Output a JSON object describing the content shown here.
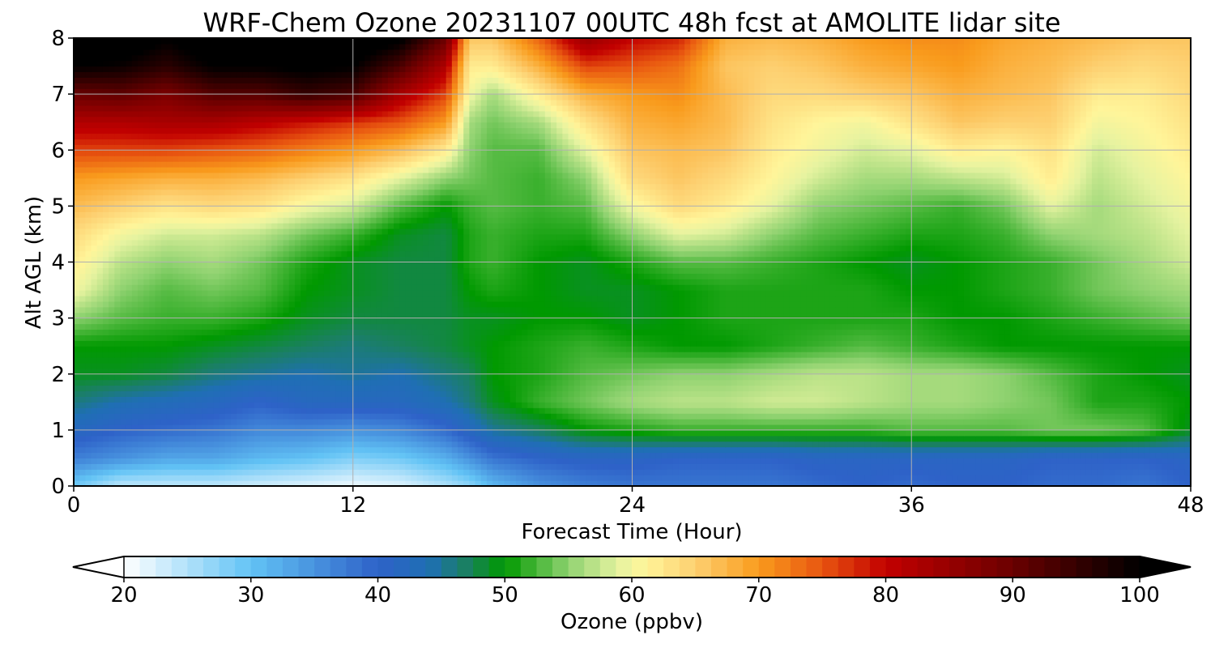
{
  "chart_data": {
    "type": "heatmap",
    "title": "WRF-Chem Ozone  20231107 00UTC 48h fcst at AMOLITE lidar site",
    "xlabel": "Forecast Time (Hour)",
    "ylabel": "Alt AGL (km)",
    "xlim": [
      0,
      48
    ],
    "ylim": [
      0,
      8
    ],
    "x_ticks": [
      0,
      12,
      24,
      36,
      48
    ],
    "y_ticks": [
      0,
      1,
      2,
      3,
      4,
      5,
      6,
      7,
      8
    ],
    "grid": true,
    "x_hours": [
      0,
      2,
      4,
      6,
      8,
      10,
      12,
      14,
      16,
      17,
      18,
      20,
      22,
      24,
      26,
      28,
      30,
      32,
      34,
      36,
      38,
      40,
      42,
      44,
      46,
      48
    ],
    "y_km": [
      0,
      0.5,
      1,
      1.5,
      2,
      2.5,
      3,
      3.5,
      4,
      4.5,
      5,
      5.5,
      6,
      6.5,
      7,
      7.5,
      8
    ],
    "ozone_ppbv": [
      [
        29,
        24,
        24,
        24,
        23,
        22,
        21,
        22,
        25,
        27,
        31,
        35,
        37,
        38,
        38,
        38,
        38,
        39,
        40,
        39,
        40,
        40,
        39,
        39,
        38,
        40
      ],
      [
        37,
        35,
        33,
        33,
        31,
        30,
        28,
        29,
        32,
        35,
        38,
        40,
        41,
        41,
        40,
        40,
        40,
        41,
        41,
        41,
        41,
        41,
        40,
        40,
        40,
        41
      ],
      [
        42,
        40,
        39,
        38,
        36,
        36,
        35,
        36,
        39,
        42,
        45,
        47,
        50,
        51,
        52,
        52,
        52,
        52,
        52,
        53,
        53,
        53,
        54,
        54,
        53,
        49
      ],
      [
        46,
        44,
        43,
        42,
        40,
        42,
        42,
        42,
        44,
        46,
        49,
        52,
        54,
        56,
        57,
        57,
        58,
        58,
        57,
        56,
        56,
        55,
        54,
        51,
        51,
        50
      ],
      [
        49,
        49,
        48,
        46,
        45,
        44,
        45,
        44,
        46,
        47,
        50,
        51,
        53,
        54,
        55,
        55,
        56,
        57,
        57,
        56,
        56,
        55,
        53,
        51,
        50,
        49
      ],
      [
        50,
        50,
        50,
        49,
        48,
        47,
        46,
        47,
        48,
        49,
        50,
        51,
        52,
        51,
        50,
        50,
        51,
        52,
        53,
        52,
        51,
        50,
        50,
        50,
        50,
        50
      ],
      [
        55,
        53,
        52,
        52,
        51,
        49,
        48,
        48,
        48,
        49,
        49,
        50,
        50,
        49,
        50,
        51,
        51,
        51,
        51,
        51,
        50,
        50,
        51,
        52,
        53,
        54
      ],
      [
        60,
        55,
        53,
        54,
        53,
        50,
        49,
        48,
        48,
        50,
        51,
        50,
        49,
        49,
        50,
        51,
        51,
        51,
        51,
        50,
        50,
        51,
        52,
        54,
        55,
        56
      ],
      [
        62,
        57,
        55,
        56,
        54,
        51,
        49,
        48,
        48,
        51,
        52,
        50,
        49,
        51,
        53,
        53,
        52,
        51,
        50,
        49,
        50,
        51,
        52,
        54,
        56,
        58
      ],
      [
        64,
        60,
        58,
        58,
        57,
        54,
        52,
        49,
        48,
        51,
        52,
        51,
        51,
        55,
        59,
        58,
        55,
        53,
        52,
        51,
        51,
        52,
        55,
        56,
        57,
        59
      ],
      [
        67,
        65,
        63,
        64,
        63,
        60,
        58,
        53,
        50,
        52,
        53,
        52,
        53,
        60,
        64,
        62,
        59,
        55,
        54,
        53,
        52,
        54,
        59,
        56,
        58,
        60
      ],
      [
        70,
        69,
        68,
        68,
        67,
        65,
        63,
        59,
        55,
        54,
        53,
        52,
        55,
        64,
        66,
        64,
        61,
        58,
        56,
        56,
        57,
        58,
        62,
        57,
        59,
        61
      ],
      [
        76,
        76,
        76,
        75,
        74,
        72,
        70,
        67,
        62,
        55,
        53,
        53,
        59,
        66,
        67,
        66,
        62,
        60,
        58,
        59,
        62,
        61,
        63,
        58,
        60,
        62
      ],
      [
        82,
        82,
        83,
        83,
        81,
        79,
        77,
        75,
        70,
        56,
        54,
        56,
        63,
        68,
        69,
        67,
        63,
        61,
        60,
        63,
        66,
        65,
        65,
        60,
        61,
        63
      ],
      [
        90,
        91,
        88,
        92,
        92,
        95,
        93,
        83,
        76,
        60,
        56,
        62,
        68,
        70,
        71,
        67,
        64,
        64,
        65,
        66,
        68,
        67,
        66,
        62,
        62,
        64
      ],
      [
        100,
        99,
        96,
        100,
        100,
        101,
        100,
        93,
        82,
        62,
        62,
        68,
        76,
        75,
        73,
        66,
        65,
        66,
        68,
        69,
        70,
        68,
        67,
        65,
        64,
        65
      ],
      [
        105,
        104,
        100,
        104,
        104,
        105,
        104,
        101,
        90,
        66,
        66,
        74,
        85,
        80,
        78,
        68,
        67,
        68,
        70,
        71,
        71,
        69,
        68,
        67,
        66,
        66
      ]
    ],
    "colorbar": {
      "label": "Ozone  (ppbv)",
      "min": 20,
      "max": 100,
      "ticks": [
        20,
        30,
        40,
        50,
        60,
        70,
        80,
        90,
        100
      ],
      "extend": "both",
      "stops": [
        {
          "v": 20,
          "c": "#ffffff"
        },
        {
          "v": 30,
          "c": "#62c3f5"
        },
        {
          "v": 40,
          "c": "#2e62c8"
        },
        {
          "v": 44,
          "c": "#1f6fb4"
        },
        {
          "v": 47,
          "c": "#1a8060"
        },
        {
          "v": 50,
          "c": "#009900"
        },
        {
          "v": 55,
          "c": "#8fd270"
        },
        {
          "v": 59,
          "c": "#e6f3a0"
        },
        {
          "v": 61,
          "c": "#fff59a"
        },
        {
          "v": 65,
          "c": "#fdd071"
        },
        {
          "v": 70,
          "c": "#f99b1c"
        },
        {
          "v": 75,
          "c": "#e85510"
        },
        {
          "v": 80,
          "c": "#c20000"
        },
        {
          "v": 90,
          "c": "#6a0000"
        },
        {
          "v": 100,
          "c": "#000000"
        }
      ]
    }
  }
}
